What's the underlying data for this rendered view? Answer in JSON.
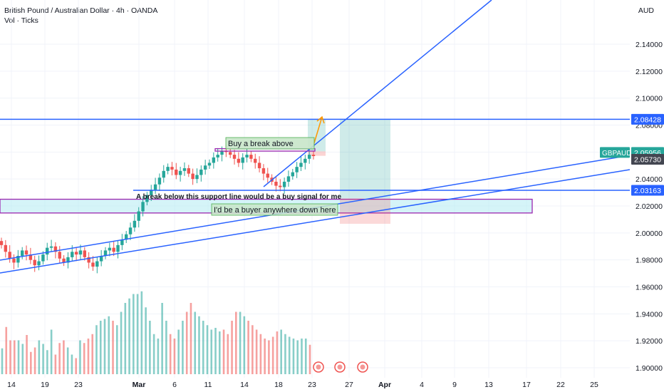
{
  "header": {
    "title": "British Pound / Australian Dollar · 4h · OANDA",
    "indicator": "Vol · Ticks",
    "currency": "AUD"
  },
  "chart_data": {
    "type": "candlestick",
    "symbol": "GBPAUD",
    "timeframe": "4h",
    "y_axis": {
      "ticks": [
        2.14,
        2.12,
        2.1,
        2.08,
        2.06,
        2.04,
        2.02,
        2.0,
        1.98,
        1.96,
        1.94,
        1.92,
        1.9
      ],
      "tick_labels": [
        "2.14000",
        "2.12000",
        "2.10000",
        "2.08000",
        "2.06000",
        "2.04000",
        "2.02000",
        "2.00000",
        "1.98000",
        "1.96000",
        "1.94000",
        "1.92000",
        "1.90000"
      ]
    },
    "x_axis": {
      "tick_labels": [
        "14",
        "19",
        "23",
        "Mar",
        "6",
        "11",
        "14",
        "18",
        "23",
        "27",
        "Apr",
        "4",
        "9",
        "13",
        "17",
        "22",
        "25"
      ]
    },
    "price_labels": [
      {
        "name": "resistance",
        "value": "2.08428",
        "color": "#2962ff"
      },
      {
        "name": "GBPAUD",
        "value": "2.05956",
        "color": "#26a69a"
      },
      {
        "name": "last",
        "value": "2.05730",
        "color": "#434651"
      },
      {
        "name": "support",
        "value": "2.03163",
        "color": "#2962ff"
      }
    ],
    "horizontal_lines": [
      {
        "name": "resistance",
        "price": 2.08428
      },
      {
        "name": "support",
        "price": 2.03163
      }
    ],
    "zones": [
      {
        "name": "buy-zone",
        "price_top": 2.025,
        "price_bottom": 2.0148
      },
      {
        "name": "break-box",
        "price_top": 2.0625,
        "price_bottom": 2.0607
      }
    ],
    "annotations": [
      "Buy a break above",
      "A break below this support line would be a buy signal for me",
      "I'd be a buyer anywhere down here"
    ],
    "position_tool": {
      "target": 2.08428,
      "entry": 2.0255,
      "stop": 2.0068
    },
    "series": [
      {
        "name": "price",
        "values": [
          1.991,
          1.986,
          1.981,
          1.978,
          1.983,
          1.987,
          1.984,
          1.98,
          1.976,
          1.979,
          1.984,
          1.989,
          1.99,
          1.986,
          1.981,
          1.978,
          1.982,
          1.986,
          1.984,
          1.987,
          1.982,
          1.978,
          1.975,
          1.979,
          1.983,
          1.987,
          1.989,
          1.986,
          1.991,
          1.995,
          1.999,
          2.004,
          2.009,
          2.016,
          2.023,
          2.028,
          2.032,
          2.036,
          2.041,
          2.046,
          2.049,
          2.047,
          2.043,
          2.046,
          2.048,
          2.044,
          2.04,
          2.043,
          2.047,
          2.05,
          2.052,
          2.056,
          2.058,
          2.061,
          2.06,
          2.058,
          2.055,
          2.052,
          2.056,
          2.058,
          2.055,
          2.052,
          2.048,
          2.044,
          2.041,
          2.038,
          2.035,
          2.034,
          2.038,
          2.042,
          2.045,
          2.049,
          2.052,
          2.055,
          2.058,
          2.057
        ]
      },
      {
        "name": "Vol",
        "values": [
          29,
          53,
          38,
          38,
          38,
          34,
          44,
          25,
          30,
          38,
          34,
          27,
          50,
          22,
          35,
          38,
          30,
          22,
          18,
          38,
          35,
          40,
          45,
          55,
          60,
          62,
          65,
          60,
          55,
          70,
          80,
          85,
          90,
          90,
          93,
          75,
          60,
          45,
          40,
          80,
          60,
          45,
          40,
          50,
          60,
          70,
          80,
          70,
          65,
          60,
          55,
          50,
          52,
          48,
          50,
          45,
          60,
          70,
          70,
          65,
          60,
          55,
          50,
          45,
          40,
          38,
          42,
          48,
          50,
          45,
          42,
          40,
          38,
          40,
          40,
          33
        ]
      }
    ],
    "grid": true
  }
}
